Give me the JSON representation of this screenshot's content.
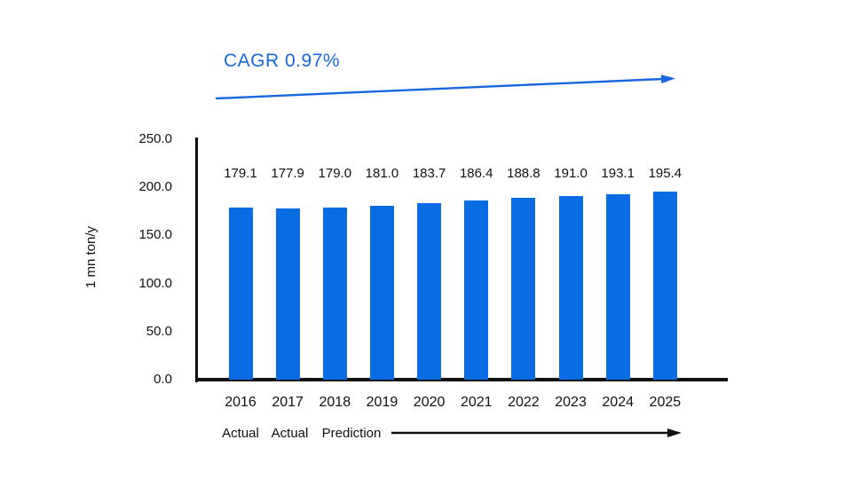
{
  "page": {
    "background": "#ffffff"
  },
  "chart_data": {
    "type": "bar",
    "title": "CAGR 0.97%",
    "categories": [
      "2016",
      "2017",
      "2018",
      "2019",
      "2020",
      "2021",
      "2022",
      "2023",
      "2024",
      "2025"
    ],
    "values": [
      179.1,
      177.9,
      179.0,
      181.0,
      183.7,
      186.4,
      188.8,
      191.0,
      193.1,
      195.4
    ],
    "xlabel": "",
    "ylabel": "1 mn ton/y",
    "ylim": [
      0,
      250
    ],
    "ytick_values": [
      250,
      200,
      150,
      100,
      50,
      0
    ],
    "ytick_decimals": 1,
    "value_label_decimals": 1,
    "grid": false,
    "legend": "none",
    "bar_color": "#0a6ce2",
    "accent_color": "#1766dd",
    "axis_color": "#111111",
    "text_color": "#111111",
    "annotations": {
      "cagr_label": "CAGR 0.97%",
      "trend_arrow": "rising-right-arrow",
      "phase_labels": [
        "Actual",
        "Actual",
        "Prediction"
      ],
      "phase_arrow": "right-arrow"
    }
  }
}
